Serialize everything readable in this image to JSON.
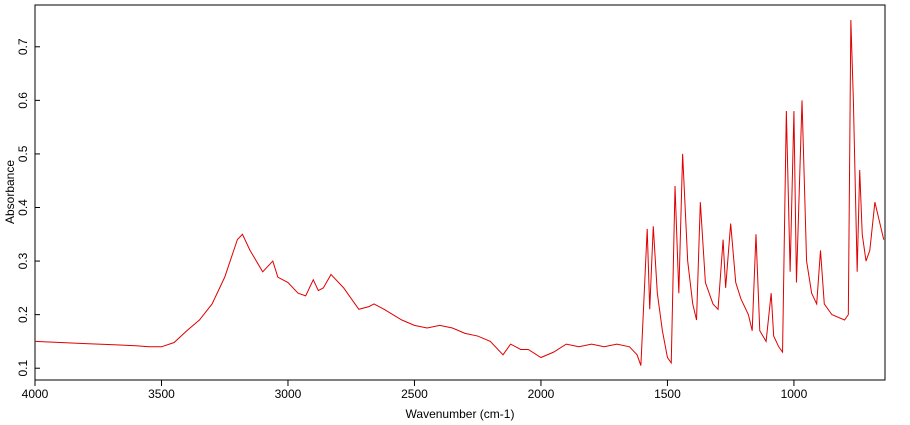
{
  "chart_data": {
    "type": "line",
    "x_label": "Wavenumber (cm-1)",
    "y_label": "Absorbance",
    "color": "#e00000",
    "xlim": [
      4000,
      640
    ],
    "ylim": [
      0.078,
      0.778
    ],
    "xticks": [
      4000,
      3500,
      3000,
      2500,
      2000,
      1500,
      1000
    ],
    "yticks": [
      0.1,
      0.2,
      0.3,
      0.4,
      0.5,
      0.6,
      0.7
    ],
    "x": [
      4000,
      3900,
      3800,
      3700,
      3600,
      3550,
      3500,
      3450,
      3400,
      3350,
      3300,
      3250,
      3200,
      3180,
      3150,
      3100,
      3060,
      3040,
      3000,
      2960,
      2930,
      2900,
      2880,
      2860,
      2830,
      2780,
      2720,
      2680,
      2660,
      2620,
      2550,
      2500,
      2450,
      2400,
      2350,
      2300,
      2250,
      2200,
      2150,
      2120,
      2080,
      2050,
      2000,
      1950,
      1900,
      1850,
      1800,
      1750,
      1700,
      1650,
      1620,
      1605,
      1580,
      1570,
      1556,
      1540,
      1520,
      1500,
      1485,
      1470,
      1455,
      1440,
      1420,
      1400,
      1385,
      1370,
      1350,
      1320,
      1300,
      1280,
      1270,
      1250,
      1230,
      1210,
      1180,
      1165,
      1150,
      1135,
      1110,
      1090,
      1080,
      1060,
      1045,
      1030,
      1015,
      1000,
      990,
      968,
      950,
      930,
      910,
      895,
      880,
      850,
      800,
      785,
      775,
      765,
      750,
      740,
      730,
      715,
      700,
      680,
      660,
      645
    ],
    "values": [
      0.15,
      0.148,
      0.146,
      0.144,
      0.142,
      0.14,
      0.14,
      0.148,
      0.17,
      0.19,
      0.22,
      0.27,
      0.34,
      0.35,
      0.32,
      0.28,
      0.3,
      0.27,
      0.26,
      0.24,
      0.235,
      0.265,
      0.245,
      0.25,
      0.275,
      0.25,
      0.21,
      0.215,
      0.22,
      0.21,
      0.19,
      0.18,
      0.175,
      0.18,
      0.175,
      0.165,
      0.16,
      0.15,
      0.125,
      0.145,
      0.135,
      0.135,
      0.12,
      0.13,
      0.145,
      0.14,
      0.145,
      0.14,
      0.145,
      0.14,
      0.125,
      0.105,
      0.36,
      0.21,
      0.365,
      0.24,
      0.17,
      0.12,
      0.11,
      0.44,
      0.24,
      0.5,
      0.3,
      0.22,
      0.19,
      0.41,
      0.26,
      0.22,
      0.21,
      0.34,
      0.25,
      0.37,
      0.26,
      0.23,
      0.2,
      0.17,
      0.35,
      0.17,
      0.15,
      0.24,
      0.16,
      0.14,
      0.13,
      0.58,
      0.28,
      0.58,
      0.26,
      0.6,
      0.3,
      0.24,
      0.22,
      0.32,
      0.22,
      0.2,
      0.19,
      0.2,
      0.75,
      0.6,
      0.28,
      0.47,
      0.35,
      0.3,
      0.32,
      0.41,
      0.37,
      0.34
    ]
  }
}
